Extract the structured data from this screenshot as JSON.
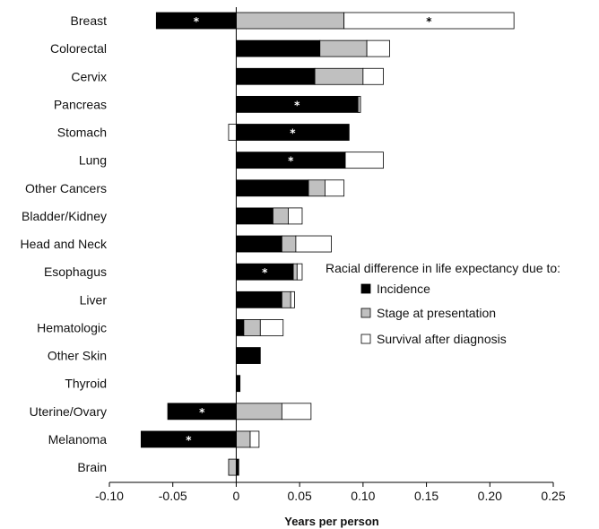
{
  "chart_data": {
    "type": "bar",
    "orientation": "horizontal",
    "stacked": true,
    "categories": [
      "Breast",
      "Colorectal",
      "Cervix",
      "Pancreas",
      "Stomach",
      "Lung",
      "Other Cancers",
      "Bladder/Kidney",
      "Head and Neck",
      "Esophagus",
      "Liver",
      "Hematologic",
      "Other Skin",
      "Thyroid",
      "Uterine/Ovary",
      "Melanoma",
      "Brain"
    ],
    "series": [
      {
        "name": "Incidence",
        "color": "#000000",
        "values": [
          -0.063,
          0.066,
          0.062,
          0.096,
          0.089,
          0.086,
          0.057,
          0.029,
          0.036,
          0.045,
          0.036,
          0.006,
          0.019,
          0.003,
          -0.054,
          -0.075,
          0.002
        ],
        "significant": [
          true,
          false,
          false,
          true,
          true,
          true,
          false,
          false,
          false,
          true,
          false,
          false,
          false,
          false,
          true,
          true,
          false
        ]
      },
      {
        "name": "Stage at presentation",
        "color": "#c0c0c0",
        "values": [
          0.085,
          0.037,
          0.038,
          0.002,
          0.0,
          0.0,
          0.013,
          0.012,
          0.011,
          0.003,
          0.007,
          0.013,
          0.0,
          0.0,
          0.036,
          0.011,
          -0.006
        ],
        "significant": [
          false,
          false,
          false,
          false,
          false,
          false,
          false,
          false,
          false,
          false,
          false,
          false,
          false,
          false,
          false,
          false,
          false
        ]
      },
      {
        "name": "Survival after diagnosis",
        "color": "#ffffff",
        "values": [
          0.134,
          0.018,
          0.016,
          0.0,
          -0.006,
          0.03,
          0.015,
          0.011,
          0.028,
          0.004,
          0.003,
          0.018,
          0.0,
          0.0,
          0.023,
          0.007,
          0.0
        ],
        "significant": [
          true,
          false,
          false,
          false,
          false,
          false,
          false,
          false,
          false,
          false,
          false,
          false,
          false,
          false,
          false,
          false,
          false
        ]
      }
    ],
    "xlabel": "Years per person",
    "ylabel": "",
    "xlim": [
      -0.1,
      0.25
    ],
    "xticks": [
      -0.1,
      -0.05,
      0,
      0.05,
      0.1,
      0.15,
      0.2,
      0.25
    ],
    "xtick_labels": [
      "-0.10",
      "-0.05",
      "0",
      "0.05",
      "0.10",
      "0.15",
      "0.20",
      "0.25"
    ],
    "significance_marker": "*",
    "grid": false,
    "legend": {
      "title": "Racial difference in life expectancy due to:",
      "placement": "right",
      "entries": [
        "Incidence",
        "Stage at presentation",
        "Survival after diagnosis"
      ]
    }
  }
}
